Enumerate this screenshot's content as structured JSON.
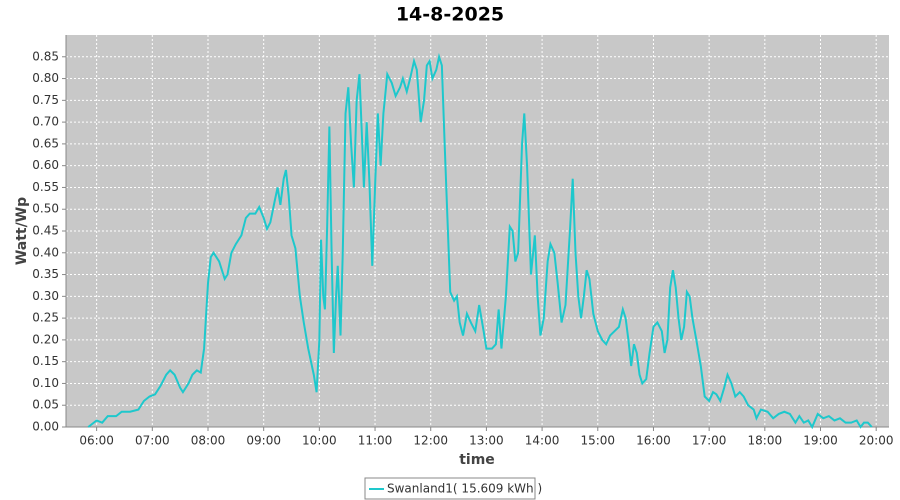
{
  "chart_data": {
    "type": "line",
    "title": "14-8-2025",
    "xlabel": "time",
    "ylabel": "Watt/Wp",
    "xlim": [
      5.45,
      20.23
    ],
    "ylim": [
      0,
      0.9
    ],
    "xticks": [
      {
        "value": 6,
        "label": "06:00"
      },
      {
        "value": 7,
        "label": "07:00"
      },
      {
        "value": 8,
        "label": "08:00"
      },
      {
        "value": 9,
        "label": "09:00"
      },
      {
        "value": 10,
        "label": "10:00"
      },
      {
        "value": 11,
        "label": "11:00"
      },
      {
        "value": 12,
        "label": "12:00"
      },
      {
        "value": 13,
        "label": "13:00"
      },
      {
        "value": 14,
        "label": "14:00"
      },
      {
        "value": 15,
        "label": "15:00"
      },
      {
        "value": 16,
        "label": "16:00"
      },
      {
        "value": 17,
        "label": "17:00"
      },
      {
        "value": 18,
        "label": "18:00"
      },
      {
        "value": 19,
        "label": "19:00"
      },
      {
        "value": 20,
        "label": "20:00"
      }
    ],
    "yticks": [
      {
        "value": 0,
        "label": "0.00"
      },
      {
        "value": 0.05,
        "label": "0.05"
      },
      {
        "value": 0.1,
        "label": "0.10"
      },
      {
        "value": 0.15,
        "label": "0.15"
      },
      {
        "value": 0.2,
        "label": "0.20"
      },
      {
        "value": 0.25,
        "label": "0.25"
      },
      {
        "value": 0.3,
        "label": "0.30"
      },
      {
        "value": 0.35,
        "label": "0.35"
      },
      {
        "value": 0.4,
        "label": "0.40"
      },
      {
        "value": 0.45,
        "label": "0.45"
      },
      {
        "value": 0.5,
        "label": "0.50"
      },
      {
        "value": 0.55,
        "label": "0.55"
      },
      {
        "value": 0.6,
        "label": "0.60"
      },
      {
        "value": 0.65,
        "label": "0.65"
      },
      {
        "value": 0.7,
        "label": "0.70"
      },
      {
        "value": 0.75,
        "label": "0.75"
      },
      {
        "value": 0.8,
        "label": "0.80"
      },
      {
        "value": 0.85,
        "label": "0.85"
      }
    ],
    "grid": true,
    "legend": "bottom",
    "x": [
      5.85,
      5.95,
      6.0,
      6.1,
      6.2,
      6.35,
      6.45,
      6.6,
      6.75,
      6.85,
      6.95,
      7.05,
      7.15,
      7.25,
      7.32,
      7.4,
      7.5,
      7.55,
      7.65,
      7.72,
      7.8,
      7.87,
      7.93,
      8.0,
      8.05,
      8.1,
      8.2,
      8.3,
      8.35,
      8.42,
      8.5,
      8.6,
      8.68,
      8.75,
      8.85,
      8.92,
      9.0,
      9.06,
      9.12,
      9.2,
      9.25,
      9.3,
      9.36,
      9.4,
      9.45,
      9.5,
      9.57,
      9.65,
      9.72,
      9.8,
      9.85,
      9.9,
      9.95,
      10.0,
      10.03,
      10.07,
      10.1,
      10.14,
      10.18,
      10.22,
      10.26,
      10.3,
      10.33,
      10.38,
      10.42,
      10.47,
      10.52,
      10.57,
      10.62,
      10.67,
      10.72,
      10.77,
      10.8,
      10.85,
      10.9,
      10.95,
      11.0,
      11.05,
      11.1,
      11.15,
      11.22,
      11.3,
      11.37,
      11.45,
      11.5,
      11.57,
      11.63,
      11.7,
      11.75,
      11.82,
      11.88,
      11.93,
      11.98,
      12.03,
      12.1,
      12.15,
      12.2,
      12.25,
      12.3,
      12.35,
      12.42,
      12.47,
      12.52,
      12.58,
      12.65,
      12.72,
      12.8,
      12.87,
      12.95,
      13.0,
      13.1,
      13.17,
      13.22,
      13.27,
      13.35,
      13.42,
      13.47,
      13.52,
      13.57,
      13.64,
      13.68,
      13.73,
      13.8,
      13.87,
      13.92,
      13.97,
      14.03,
      14.1,
      14.15,
      14.22,
      14.28,
      14.35,
      14.42,
      14.5,
      14.55,
      14.6,
      14.65,
      14.7,
      14.75,
      14.8,
      14.85,
      14.92,
      15.0,
      15.08,
      15.15,
      15.22,
      15.3,
      15.38,
      15.45,
      15.5,
      15.55,
      15.6,
      15.65,
      15.7,
      15.75,
      15.8,
      15.87,
      15.93,
      16.0,
      16.07,
      16.15,
      16.2,
      16.25,
      16.3,
      16.35,
      16.4,
      16.45,
      16.5,
      16.55,
      16.6,
      16.65,
      16.7,
      16.77,
      16.85,
      16.92,
      17.0,
      17.07,
      17.13,
      17.2,
      17.27,
      17.33,
      17.4,
      17.47,
      17.55,
      17.62,
      17.7,
      17.8,
      17.85,
      17.93,
      18.05,
      18.15,
      18.25,
      18.35,
      18.45,
      18.55,
      18.62,
      18.7,
      18.78,
      18.85,
      18.95,
      19.05,
      19.15,
      19.25,
      19.35,
      19.45,
      19.55,
      19.65,
      19.72,
      19.78,
      19.85,
      19.92
    ],
    "series": [
      {
        "name": "Swanland1( 15.609 kWh )",
        "color": "#1ec8cc",
        "values": [
          0.0,
          0.01,
          0.015,
          0.01,
          0.025,
          0.025,
          0.035,
          0.035,
          0.04,
          0.06,
          0.07,
          0.075,
          0.095,
          0.12,
          0.13,
          0.12,
          0.09,
          0.08,
          0.1,
          0.12,
          0.13,
          0.125,
          0.18,
          0.33,
          0.39,
          0.4,
          0.38,
          0.34,
          0.35,
          0.4,
          0.42,
          0.44,
          0.48,
          0.49,
          0.49,
          0.505,
          0.48,
          0.455,
          0.47,
          0.52,
          0.55,
          0.51,
          0.57,
          0.59,
          0.53,
          0.44,
          0.41,
          0.3,
          0.24,
          0.18,
          0.15,
          0.12,
          0.08,
          0.2,
          0.43,
          0.3,
          0.27,
          0.46,
          0.69,
          0.4,
          0.17,
          0.3,
          0.37,
          0.21,
          0.4,
          0.72,
          0.78,
          0.65,
          0.55,
          0.75,
          0.81,
          0.65,
          0.55,
          0.7,
          0.56,
          0.37,
          0.55,
          0.72,
          0.6,
          0.72,
          0.81,
          0.79,
          0.76,
          0.78,
          0.8,
          0.77,
          0.8,
          0.84,
          0.82,
          0.7,
          0.75,
          0.83,
          0.84,
          0.8,
          0.82,
          0.85,
          0.83,
          0.65,
          0.48,
          0.31,
          0.29,
          0.3,
          0.24,
          0.21,
          0.26,
          0.24,
          0.22,
          0.28,
          0.22,
          0.18,
          0.18,
          0.19,
          0.27,
          0.18,
          0.3,
          0.46,
          0.45,
          0.38,
          0.4,
          0.65,
          0.72,
          0.6,
          0.35,
          0.44,
          0.3,
          0.21,
          0.25,
          0.38,
          0.42,
          0.4,
          0.33,
          0.24,
          0.28,
          0.45,
          0.57,
          0.4,
          0.3,
          0.25,
          0.3,
          0.36,
          0.34,
          0.26,
          0.22,
          0.2,
          0.19,
          0.21,
          0.22,
          0.23,
          0.27,
          0.25,
          0.2,
          0.14,
          0.19,
          0.17,
          0.12,
          0.1,
          0.11,
          0.17,
          0.23,
          0.24,
          0.22,
          0.17,
          0.2,
          0.32,
          0.36,
          0.32,
          0.25,
          0.2,
          0.23,
          0.31,
          0.3,
          0.25,
          0.2,
          0.14,
          0.07,
          0.06,
          0.08,
          0.075,
          0.06,
          0.09,
          0.12,
          0.1,
          0.07,
          0.08,
          0.07,
          0.05,
          0.04,
          0.02,
          0.04,
          0.035,
          0.02,
          0.03,
          0.035,
          0.03,
          0.01,
          0.025,
          0.01,
          0.015,
          0.0,
          0.03,
          0.02,
          0.025,
          0.015,
          0.02,
          0.01,
          0.01,
          0.015,
          0.0,
          0.01,
          0.01,
          0.0
        ]
      }
    ]
  }
}
